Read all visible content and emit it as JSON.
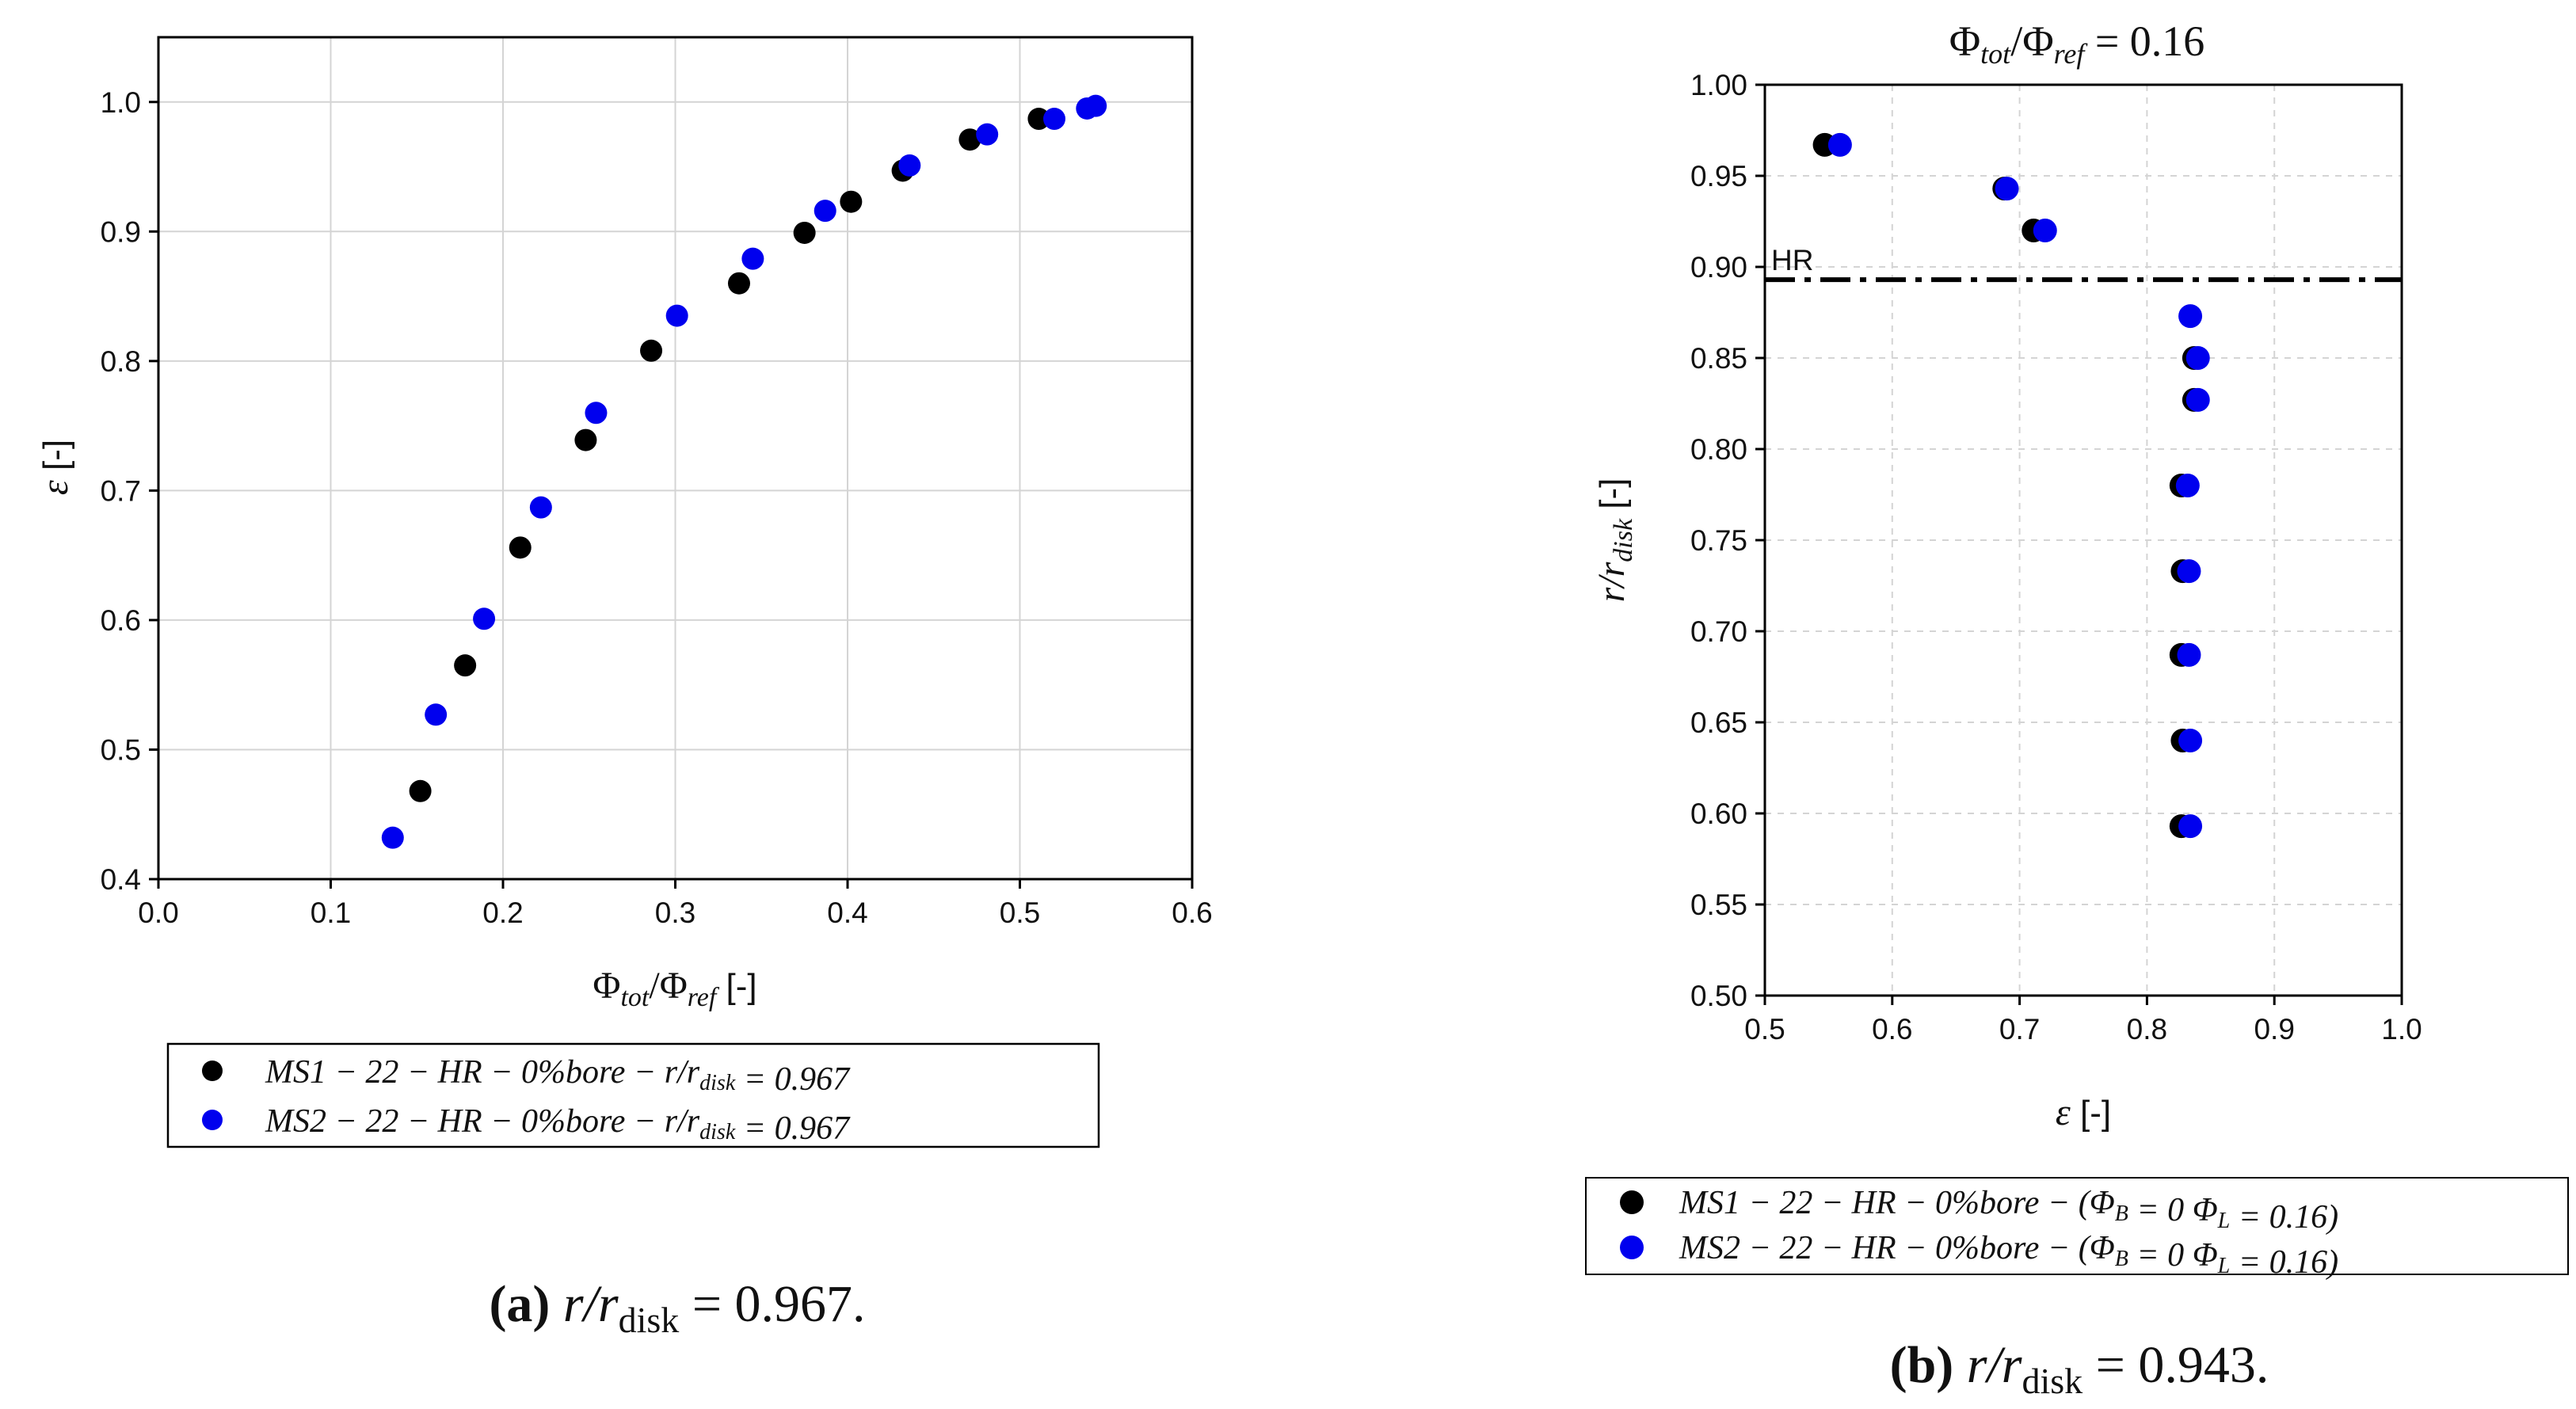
{
  "chart_data": [
    {
      "type": "scatter",
      "panel": "a",
      "xlabel": "Φ_tot/Φ_ref [-]",
      "ylabel": "ε [-]",
      "xlim": [
        0.0,
        0.6
      ],
      "ylim": [
        0.4,
        1.05
      ],
      "xticks": [
        "0.0",
        "0.1",
        "0.2",
        "0.3",
        "0.4",
        "0.5",
        "0.6"
      ],
      "yticks": [
        "0.4",
        "0.5",
        "0.6",
        "0.7",
        "0.8",
        "0.9",
        "1.0"
      ],
      "grid": true,
      "legend_position": "below",
      "series": [
        {
          "name": "MS1 − 22 − HR − 0%bore − r/r_disk = 0.967",
          "color": "#000000",
          "x": [
            0.152,
            0.178,
            0.21,
            0.248,
            0.286,
            0.337,
            0.375,
            0.402,
            0.432,
            0.471,
            0.511
          ],
          "y": [
            0.468,
            0.565,
            0.656,
            0.739,
            0.808,
            0.86,
            0.899,
            0.923,
            0.947,
            0.971,
            0.987
          ]
        },
        {
          "name": "MS2 − 22 − HR − 0%bore − r/r_disk = 0.967",
          "color": "#0000ee",
          "x": [
            0.136,
            0.161,
            0.189,
            0.222,
            0.254,
            0.301,
            0.345,
            0.387,
            0.436,
            0.481,
            0.52,
            0.539,
            0.544
          ],
          "y": [
            0.432,
            0.527,
            0.601,
            0.687,
            0.76,
            0.835,
            0.879,
            0.916,
            0.951,
            0.975,
            0.987,
            0.995,
            0.997
          ]
        }
      ],
      "caption_label": "(a)",
      "caption_text": "r/r",
      "caption_sub": "disk",
      "caption_value": " = 0.967."
    },
    {
      "type": "scatter",
      "panel": "b",
      "title": "Φ_tot/Φ_ref = 0.16",
      "xlabel": "ε [-]",
      "ylabel": "r/r_disk [-]",
      "xlim": [
        0.5,
        1.0
      ],
      "ylim": [
        0.5,
        1.0
      ],
      "xticks": [
        "0.5",
        "0.6",
        "0.7",
        "0.8",
        "0.9",
        "1.0"
      ],
      "yticks": [
        "0.50",
        "0.55",
        "0.60",
        "0.65",
        "0.70",
        "0.75",
        "0.80",
        "0.85",
        "0.90",
        "0.95",
        "1.00"
      ],
      "grid": true,
      "reference_line": {
        "label": "HR",
        "y": 0.893
      },
      "legend_position": "below",
      "series": [
        {
          "name": "MS1 − 22 − HR − 0%bore − (Φ_B = 0 Φ_L = 0.16)",
          "color": "#000000",
          "x": [
            0.547,
            0.688,
            0.711,
            0.837,
            0.837,
            0.827,
            0.828,
            0.827,
            0.828,
            0.827
          ],
          "y": [
            0.967,
            0.943,
            0.92,
            0.85,
            0.827,
            0.78,
            0.733,
            0.687,
            0.64,
            0.593
          ]
        },
        {
          "name": "MS2 − 22 − HR − 0%bore − (Φ_B = 0 Φ_L = 0.16)",
          "color": "#0000ee",
          "x": [
            0.559,
            0.69,
            0.72,
            0.834,
            0.84,
            0.84,
            0.832,
            0.833,
            0.833,
            0.834,
            0.834
          ],
          "y": [
            0.967,
            0.943,
            0.92,
            0.873,
            0.85,
            0.827,
            0.78,
            0.733,
            0.687,
            0.64,
            0.593
          ]
        }
      ],
      "caption_label": "(b)",
      "caption_text": "r/r",
      "caption_sub": "disk",
      "caption_value": " = 0.943."
    }
  ]
}
